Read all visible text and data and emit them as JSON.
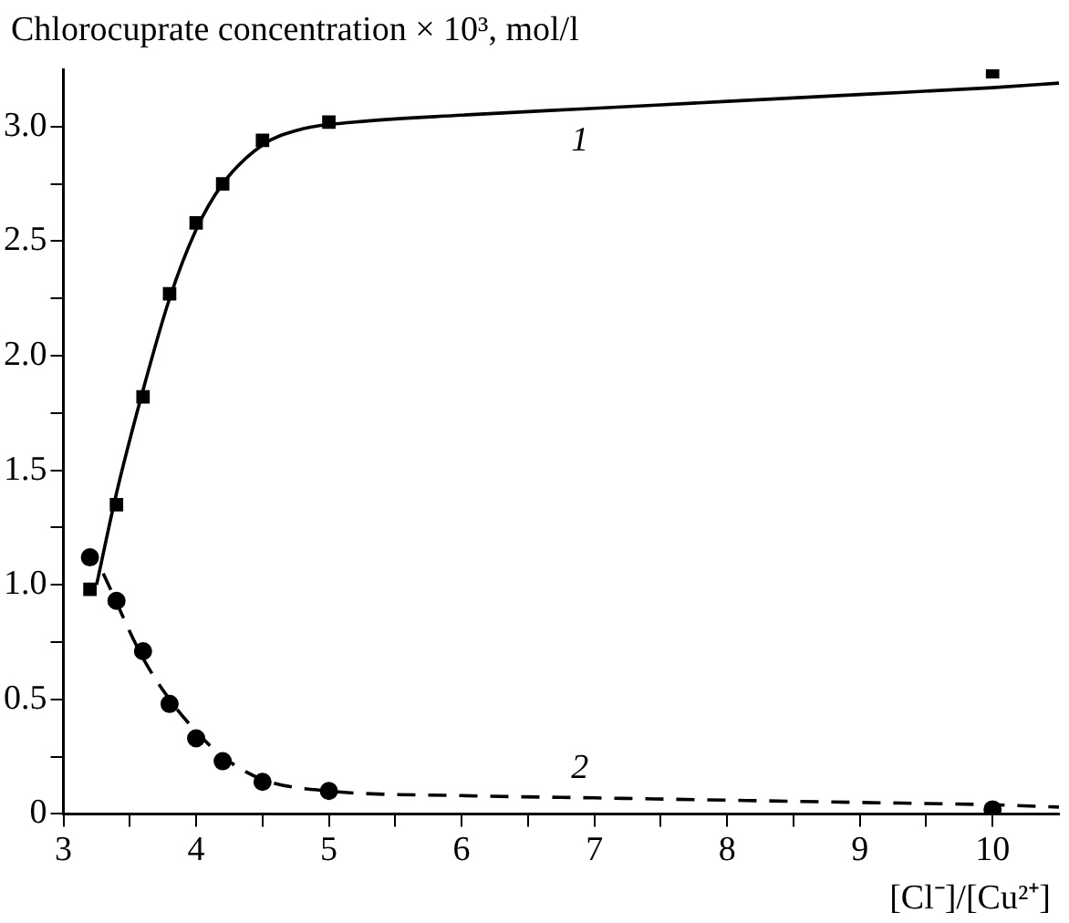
{
  "chart_data": {
    "type": "scatter",
    "ylabel": "Chlorocuprate concentration × 10³, mol/l",
    "xlabel": "[Cl⁻]/[Cu²⁺]",
    "xlim": [
      3,
      10.5
    ],
    "ylim": [
      0,
      3.25
    ],
    "xticks": [
      3,
      {
        "value": 3.5,
        "label": null
      },
      4,
      {
        "value": 4.5,
        "label": null
      },
      5,
      {
        "value": 5.5,
        "label": null
      },
      6,
      {
        "value": 6.5,
        "label": null
      },
      7,
      {
        "value": 7.5,
        "label": null
      },
      8,
      {
        "value": 8.5,
        "label": null
      },
      9,
      {
        "value": 9.5,
        "label": null
      },
      10
    ],
    "yticks": [
      0,
      {
        "value": 0.25,
        "label": null
      },
      0.5,
      {
        "value": 0.75,
        "label": null
      },
      {
        "value": 1,
        "label": "1.0"
      },
      {
        "value": 1.25,
        "label": null
      },
      1.5,
      {
        "value": 1.75,
        "label": null
      },
      {
        "value": 2,
        "label": "2.0"
      },
      {
        "value": 2.25,
        "label": null
      },
      2.5,
      {
        "value": 2.75,
        "label": null
      },
      {
        "value": 3,
        "label": "3.0"
      }
    ],
    "grid": false,
    "legend": false,
    "series": [
      {
        "type": "scatter",
        "color": "#000000",
        "marker": "square",
        "x": [
          3.2,
          3.4,
          3.6,
          3.8,
          4.0,
          4.2,
          4.5,
          5.0,
          10
        ],
        "values": [
          0.98,
          1.35,
          1.82,
          2.27,
          2.58,
          2.75,
          2.94,
          3.02,
          3.24
        ]
      },
      {
        "type": "scatter",
        "color": "#000000",
        "marker": "circle",
        "x": [
          3.2,
          3.4,
          3.6,
          3.8,
          4.0,
          4.2,
          4.5,
          5.0,
          10
        ],
        "values": [
          1.12,
          0.93,
          0.71,
          0.48,
          0.33,
          0.23,
          0.14,
          0.1,
          0.02
        ]
      },
      {
        "type": "line",
        "name": "1",
        "color": "#000000",
        "marker": "none",
        "line_style": "solid",
        "x": [
          3.25,
          3.4,
          3.6,
          3.8,
          4.0,
          4.2,
          4.5,
          4.8,
          5.2,
          6,
          7,
          8,
          9,
          10,
          10.5
        ],
        "values": [
          1.0,
          1.4,
          1.85,
          2.25,
          2.55,
          2.75,
          2.92,
          2.99,
          3.02,
          3.05,
          3.08,
          3.11,
          3.14,
          3.17,
          3.19
        ]
      },
      {
        "type": "line",
        "name": "2",
        "color": "#000000",
        "marker": "none",
        "line_style": "dashed",
        "x": [
          3.3,
          3.6,
          3.8,
          4.0,
          4.2,
          4.5,
          5,
          6,
          7,
          8,
          9,
          10,
          10.5
        ],
        "values": [
          1.05,
          0.68,
          0.5,
          0.36,
          0.25,
          0.15,
          0.1,
          0.08,
          0.07,
          0.06,
          0.05,
          0.04,
          0.03
        ]
      }
    ]
  }
}
